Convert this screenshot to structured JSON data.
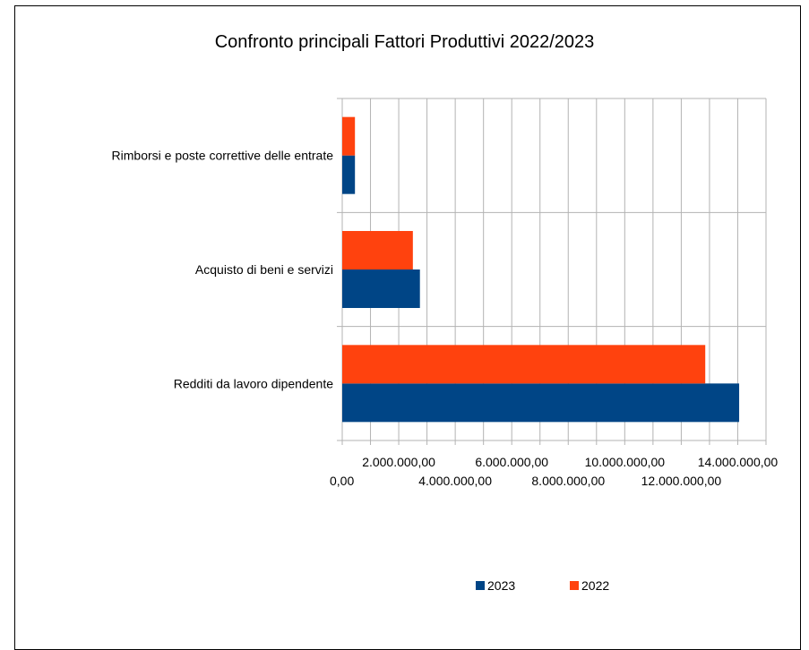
{
  "chart_data": {
    "type": "bar",
    "orientation": "horizontal",
    "title": "Confronto principali Fattori Produttivi 2022/2023",
    "categories": [
      "Rimborsi e poste correttive delle entrate",
      "Acquisto di beni e servizi",
      "Redditi da lavoro dipendente"
    ],
    "series": [
      {
        "name": "2023",
        "color": "#004586",
        "values": [
          450000,
          2750000,
          14050000
        ]
      },
      {
        "name": "2022",
        "color": "#ff420e",
        "values": [
          450000,
          2500000,
          12850000
        ]
      }
    ],
    "xlim": [
      0,
      15000000
    ],
    "tick_step": 1000000,
    "tick_labels": [
      {
        "value": 0,
        "label": "0,00"
      },
      {
        "value": 2000000,
        "label": "2.000.000,00"
      },
      {
        "value": 4000000,
        "label": "4.000.000,00"
      },
      {
        "value": 6000000,
        "label": "6.000.000,00"
      },
      {
        "value": 8000000,
        "label": "8.000.000,00"
      },
      {
        "value": 10000000,
        "label": "10.000.000,00"
      },
      {
        "value": 12000000,
        "label": "12.000.000,00"
      },
      {
        "value": 14000000,
        "label": "14.000.000,00"
      }
    ],
    "grid": true,
    "legend_position": "bottom"
  }
}
